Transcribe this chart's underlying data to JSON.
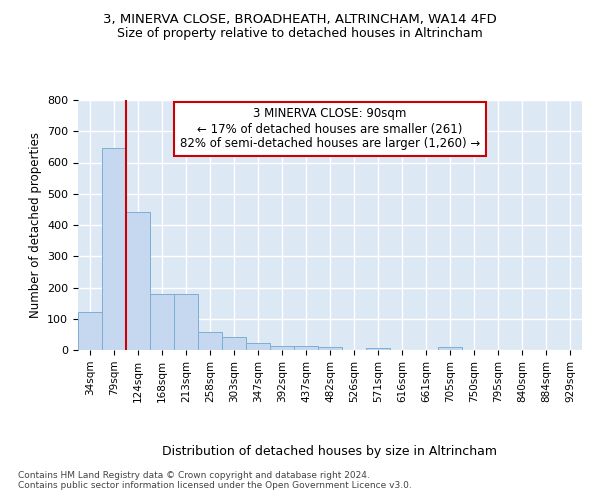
{
  "title1": "3, MINERVA CLOSE, BROADHEATH, ALTRINCHAM, WA14 4FD",
  "title2": "Size of property relative to detached houses in Altrincham",
  "xlabel": "Distribution of detached houses by size in Altrincham",
  "ylabel": "Number of detached properties",
  "categories": [
    "34sqm",
    "79sqm",
    "124sqm",
    "168sqm",
    "213sqm",
    "258sqm",
    "303sqm",
    "347sqm",
    "392sqm",
    "437sqm",
    "482sqm",
    "526sqm",
    "571sqm",
    "616sqm",
    "661sqm",
    "705sqm",
    "750sqm",
    "795sqm",
    "840sqm",
    "884sqm",
    "929sqm"
  ],
  "values": [
    122,
    648,
    442,
    178,
    178,
    57,
    42,
    23,
    13,
    14,
    11,
    0,
    8,
    0,
    0,
    9,
    0,
    0,
    0,
    0,
    0
  ],
  "bar_color": "#c5d8f0",
  "bar_edge_color": "#7bafd4",
  "annotation_text1": "3 MINERVA CLOSE: 90sqm",
  "annotation_text2": "← 17% of detached houses are smaller (261)",
  "annotation_text3": "82% of semi-detached houses are larger (1,260) →",
  "annotation_box_color": "#ffffff",
  "annotation_box_edge": "#cc0000",
  "vline_color": "#cc0000",
  "background_color": "#dde8f5",
  "grid_color": "#ffffff",
  "footer1": "Contains HM Land Registry data © Crown copyright and database right 2024.",
  "footer2": "Contains public sector information licensed under the Open Government Licence v3.0.",
  "ylim": [
    0,
    800
  ],
  "yticks": [
    0,
    100,
    200,
    300,
    400,
    500,
    600,
    700,
    800
  ]
}
